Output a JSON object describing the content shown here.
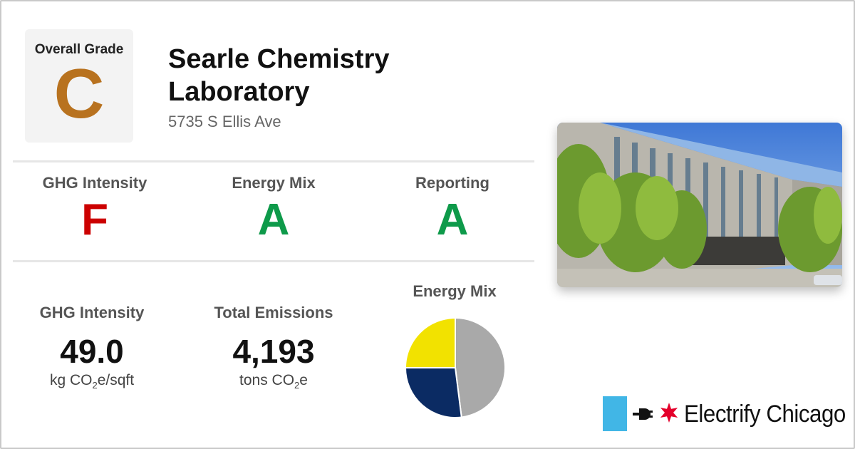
{
  "overall": {
    "label": "Overall Grade",
    "grade": "C",
    "color": "#b8721f"
  },
  "building": {
    "name": "Searle Chemistry Laboratory",
    "address": "5735 S Ellis Ave"
  },
  "sub_grades": [
    {
      "label": "GHG Intensity",
      "grade": "F",
      "color": "#cc0000"
    },
    {
      "label": "Energy Mix",
      "grade": "A",
      "color": "#0e9a4a"
    },
    {
      "label": "Reporting",
      "grade": "A",
      "color": "#0e9a4a"
    }
  ],
  "stats": {
    "ghg": {
      "label": "GHG Intensity",
      "value": "49.0",
      "unit_pre": "kg CO",
      "unit_sub": "2",
      "unit_post": "e/sqft"
    },
    "emissions": {
      "label": "Total Emissions",
      "value": "4,193",
      "unit_pre": "tons CO",
      "unit_sub": "2",
      "unit_post": "e"
    }
  },
  "chart_data": {
    "type": "pie",
    "title": "Energy Mix",
    "slices": [
      {
        "name": "Gray",
        "value": 0.48,
        "color": "#a9a9a9"
      },
      {
        "name": "Navy",
        "value": 0.27,
        "color": "#0b2b63"
      },
      {
        "name": "Yellow",
        "value": 0.25,
        "color": "#f2e200"
      }
    ]
  },
  "photo": {
    "icon": "building-photo"
  },
  "brand": {
    "name": "Electrify Chicago",
    "accent": "#41b6e6",
    "star_color": "#e4002b"
  }
}
